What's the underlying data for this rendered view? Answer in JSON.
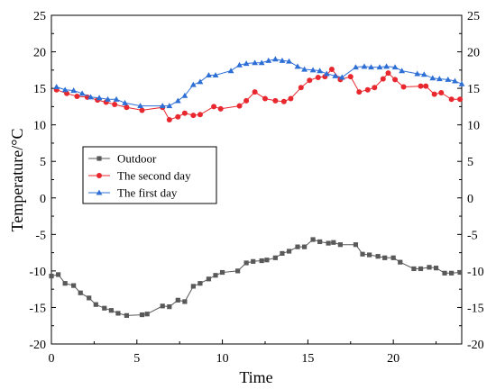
{
  "chart_data": {
    "type": "line",
    "xlabel": "Time",
    "ylabel": "Temperature/°C",
    "xlim": [
      0,
      24
    ],
    "ylim": [
      -20,
      25
    ],
    "x_ticks": [
      "0",
      "5",
      "10",
      "15",
      "20"
    ],
    "y_ticks": [
      "25",
      "20",
      "15",
      "10",
      "5",
      "0",
      "-5",
      "-10",
      "-15",
      "-20"
    ],
    "grid": false,
    "right_axis": true,
    "legend": {
      "position": "center-left",
      "entries": [
        "Outdoor",
        "The second day",
        "The first day"
      ]
    },
    "series": [
      {
        "name": "Outdoor",
        "color": "#595959",
        "marker": "square",
        "points": [
          [
            0,
            -10.7
          ],
          [
            0.4,
            -10.5
          ],
          [
            0.8,
            -11.7
          ],
          [
            1.3,
            -12
          ],
          [
            1.7,
            -13
          ],
          [
            2.2,
            -13.7
          ],
          [
            2.6,
            -14.6
          ],
          [
            3.1,
            -15.1
          ],
          [
            3.5,
            -15.4
          ],
          [
            3.9,
            -15.8
          ],
          [
            4.4,
            -16.1
          ],
          [
            5.3,
            -16
          ],
          [
            5.6,
            -15.9
          ],
          [
            6.5,
            -14.8
          ],
          [
            6.9,
            -14.9
          ],
          [
            7.4,
            -14
          ],
          [
            7.8,
            -14.2
          ],
          [
            8.3,
            -12.1
          ],
          [
            8.7,
            -11.7
          ],
          [
            9.2,
            -11.1
          ],
          [
            9.6,
            -10.6
          ],
          [
            10,
            -10.2
          ],
          [
            10.9,
            -10
          ],
          [
            11.4,
            -8.9
          ],
          [
            11.8,
            -8.7
          ],
          [
            12.3,
            -8.6
          ],
          [
            12.6,
            -8.5
          ],
          [
            13.1,
            -8.2
          ],
          [
            13.5,
            -7.6
          ],
          [
            13.9,
            -7.3
          ],
          [
            14.4,
            -6.7
          ],
          [
            14.8,
            -6.7
          ],
          [
            15.3,
            -5.7
          ],
          [
            15.7,
            -6
          ],
          [
            16.2,
            -6.2
          ],
          [
            16.5,
            -6.1
          ],
          [
            16.9,
            -6.4
          ],
          [
            17.8,
            -6.4
          ],
          [
            18.2,
            -7.7
          ],
          [
            18.6,
            -7.8
          ],
          [
            19.1,
            -8
          ],
          [
            19.5,
            -8.2
          ],
          [
            20,
            -8.2
          ],
          [
            20.4,
            -8.8
          ],
          [
            21.2,
            -9.7
          ],
          [
            21.6,
            -9.7
          ],
          [
            22.1,
            -9.5
          ],
          [
            22.5,
            -9.6
          ],
          [
            23,
            -10.3
          ],
          [
            23.4,
            -10.3
          ],
          [
            23.9,
            -10.2
          ]
        ]
      },
      {
        "name": "The second day",
        "color": "#e8282e",
        "marker": "circle",
        "points": [
          [
            0.3,
            14.8
          ],
          [
            0.9,
            14.3
          ],
          [
            1.5,
            13.9
          ],
          [
            2.1,
            13.8
          ],
          [
            2.7,
            13.4
          ],
          [
            3.2,
            13.1
          ],
          [
            3.7,
            12.8
          ],
          [
            4.4,
            12.4
          ],
          [
            5.3,
            12
          ],
          [
            6.5,
            12.4
          ],
          [
            6.9,
            10.7
          ],
          [
            7.4,
            11.1
          ],
          [
            7.8,
            11.6
          ],
          [
            8.3,
            11.3
          ],
          [
            8.7,
            11.4
          ],
          [
            9.5,
            12.5
          ],
          [
            9.9,
            12.2
          ],
          [
            11,
            12.6
          ],
          [
            11.4,
            13.3
          ],
          [
            11.9,
            14.5
          ],
          [
            12.5,
            13.6
          ],
          [
            13.1,
            13.3
          ],
          [
            13.6,
            13.2
          ],
          [
            14,
            13.6
          ],
          [
            14.6,
            15.1
          ],
          [
            15.1,
            16.1
          ],
          [
            15.6,
            16.5
          ],
          [
            16,
            16.6
          ],
          [
            16.4,
            17.6
          ],
          [
            16.9,
            16.2
          ],
          [
            17.5,
            16.6
          ],
          [
            18,
            14.5
          ],
          [
            18.5,
            14.8
          ],
          [
            18.9,
            15.1
          ],
          [
            19.4,
            16.3
          ],
          [
            19.7,
            17.1
          ],
          [
            20.1,
            16.2
          ],
          [
            20.6,
            15.2
          ],
          [
            21.6,
            15.3
          ],
          [
            21.9,
            15.3
          ],
          [
            22.4,
            14.2
          ],
          [
            22.8,
            14.4
          ],
          [
            23.4,
            13.5
          ],
          [
            23.9,
            13.5
          ]
        ]
      },
      {
        "name": "The first day",
        "color": "#2e6fd6",
        "marker": "triangle",
        "points": [
          [
            0.3,
            15.2
          ],
          [
            0.8,
            14.8
          ],
          [
            1.3,
            14.7
          ],
          [
            1.8,
            14.3
          ],
          [
            2.3,
            13.8
          ],
          [
            2.8,
            13.7
          ],
          [
            3.3,
            13.5
          ],
          [
            3.8,
            13.5
          ],
          [
            4.3,
            13
          ],
          [
            5.2,
            12.6
          ],
          [
            6.5,
            12.6
          ],
          [
            6.9,
            12.6
          ],
          [
            7.4,
            13.3
          ],
          [
            7.8,
            14
          ],
          [
            8.3,
            15.5
          ],
          [
            8.7,
            15.9
          ],
          [
            9.2,
            16.8
          ],
          [
            9.6,
            16.8
          ],
          [
            10.5,
            17.4
          ],
          [
            11,
            18.2
          ],
          [
            11.4,
            18.4
          ],
          [
            11.9,
            18.5
          ],
          [
            12.3,
            18.5
          ],
          [
            12.7,
            18.8
          ],
          [
            13.1,
            19
          ],
          [
            13.5,
            18.8
          ],
          [
            13.9,
            18.7
          ],
          [
            14.4,
            18
          ],
          [
            14.8,
            17.6
          ],
          [
            15.3,
            17.5
          ],
          [
            15.7,
            17.4
          ],
          [
            16.1,
            17
          ],
          [
            16.6,
            16.7
          ],
          [
            17,
            16.5
          ],
          [
            17.8,
            17.9
          ],
          [
            18.3,
            18
          ],
          [
            18.7,
            17.9
          ],
          [
            19.2,
            17.9
          ],
          [
            19.6,
            18
          ],
          [
            20.1,
            17.9
          ],
          [
            20.5,
            17.4
          ],
          [
            21.4,
            17
          ],
          [
            21.8,
            16.9
          ],
          [
            22.3,
            16.4
          ],
          [
            22.7,
            16.3
          ],
          [
            23.2,
            16.2
          ],
          [
            23.6,
            16
          ],
          [
            24,
            15.6
          ]
        ]
      }
    ]
  }
}
